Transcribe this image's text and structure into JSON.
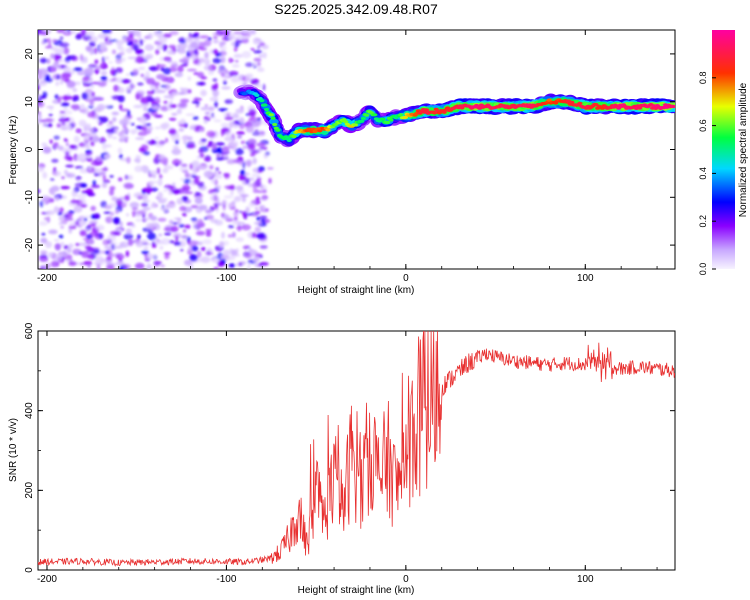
{
  "title": "S225.2025.342.09.48.R07",
  "colorbar": {
    "label": "Normalized spectral amplitude",
    "ticks": [
      0.0,
      0.2,
      0.4,
      0.6,
      0.8
    ],
    "tick_labels": [
      "0.0",
      "0.2",
      "0.4",
      "0.6",
      "0.8"
    ],
    "colors": [
      "#f7f3ff",
      "#8a00ff",
      "#0000ff",
      "#00d8ff",
      "#00ff40",
      "#e8ff00",
      "#ff3000",
      "#ff00a0"
    ]
  },
  "chart_data": [
    {
      "type": "heatmap",
      "title": "S225.2025.342.09.48.R07",
      "xlabel": "Height of straight line (km)",
      "ylabel": "Frequency (Hz)",
      "xlim": [
        -205,
        150
      ],
      "ylim": [
        -25,
        25
      ],
      "xticks": [
        -200,
        -100,
        0,
        100
      ],
      "xtick_labels": [
        "-200",
        "-100",
        "0",
        "100"
      ],
      "yticks": [
        -20,
        -10,
        0,
        10,
        20
      ],
      "ytick_labels": [
        "-20",
        "-10",
        "0",
        "10",
        "20"
      ],
      "noise_region_x": [
        -205,
        -78
      ],
      "ridge": {
        "x": [
          -92,
          -85,
          -80,
          -75,
          -70,
          -65,
          -60,
          -55,
          -45,
          -40,
          -35,
          -30,
          -25,
          -20,
          -15,
          -10,
          -5,
          0,
          10,
          20,
          30,
          40,
          50,
          60,
          70,
          80,
          90,
          100,
          110,
          120,
          130,
          140,
          150
        ],
        "freq": [
          12,
          12,
          10,
          7,
          3,
          2,
          4,
          4,
          4,
          5,
          6,
          5,
          6,
          8,
          6,
          6,
          7,
          7,
          8,
          8,
          9,
          9,
          9,
          9,
          9,
          10,
          10,
          9,
          9,
          9,
          9,
          9,
          9
        ],
        "amplitude": [
          0.3,
          0.4,
          0.5,
          0.6,
          0.55,
          0.5,
          0.7,
          0.8,
          0.8,
          0.6,
          0.6,
          0.7,
          0.5,
          0.6,
          0.5,
          0.6,
          0.5,
          0.7,
          0.9,
          0.85,
          0.9,
          0.95,
          0.9,
          0.9,
          0.92,
          0.8,
          0.85,
          0.9,
          0.85,
          0.95,
          0.92,
          0.95,
          0.95
        ]
      }
    },
    {
      "type": "line",
      "title": "",
      "xlabel": "Height of straight line (km)",
      "ylabel": "SNR (10 * v/v)",
      "xlim": [
        -205,
        150
      ],
      "ylim": [
        0,
        600
      ],
      "xticks": [
        -200,
        -100,
        0,
        100
      ],
      "xtick_labels": [
        "-200",
        "-100",
        "0",
        "100"
      ],
      "yticks": [
        0,
        200,
        400,
        600
      ],
      "ytick_labels": [
        "0",
        "200",
        "400",
        "600"
      ],
      "color": "#e83030",
      "series": [
        {
          "name": "SNR",
          "x": [
            -205,
            -180,
            -160,
            -140,
            -120,
            -100,
            -90,
            -80,
            -75,
            -70,
            -65,
            -60,
            -55,
            -50,
            -45,
            -40,
            -35,
            -30,
            -25,
            -20,
            -15,
            -10,
            -5,
            0,
            5,
            10,
            15,
            20,
            25,
            30,
            35,
            40,
            45,
            50,
            60,
            70,
            80,
            90,
            100,
            105,
            110,
            115,
            120,
            130,
            140,
            150
          ],
          "y": [
            20,
            22,
            18,
            20,
            22,
            21,
            20,
            25,
            30,
            45,
            80,
            150,
            60,
            190,
            130,
            240,
            150,
            300,
            200,
            320,
            230,
            280,
            200,
            300,
            360,
            410,
            440,
            460,
            480,
            500,
            520,
            530,
            545,
            535,
            525,
            520,
            515,
            520,
            515,
            525,
            520,
            510,
            505,
            510,
            505,
            500
          ]
        }
      ]
    }
  ]
}
